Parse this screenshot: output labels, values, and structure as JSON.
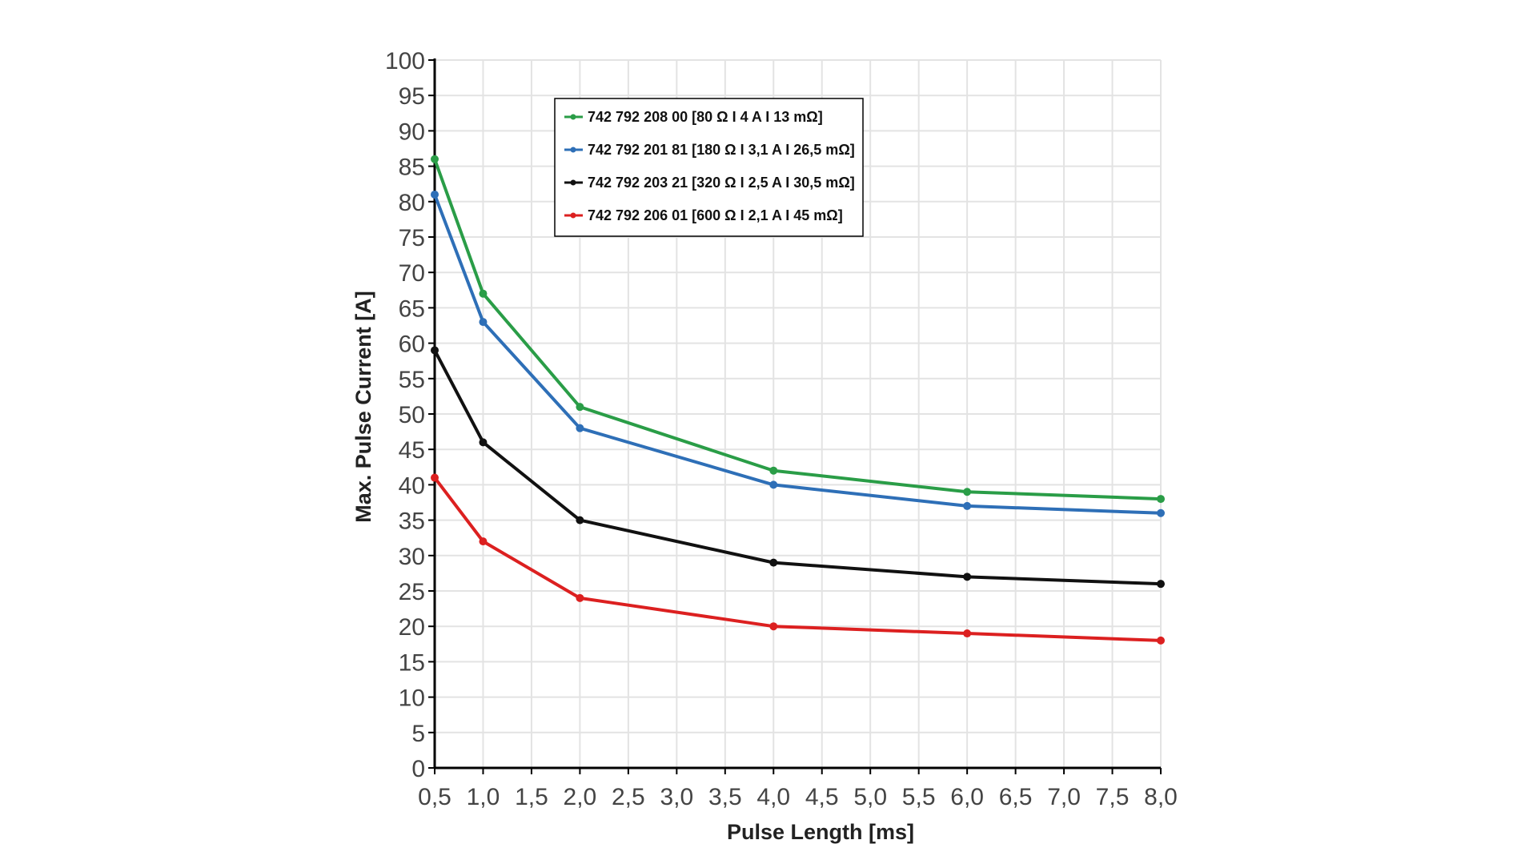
{
  "chart_data": {
    "type": "line",
    "xlabel": "Pulse  Length [ms]",
    "ylabel": "Max. Pulse Current [A]",
    "xlim": [
      0.5,
      8.0
    ],
    "ylim": [
      0,
      100
    ],
    "x_ticks": [
      "0,5",
      "1,0",
      "1,5",
      "2,0",
      "2,5",
      "3,0",
      "3,5",
      "4,0",
      "4,5",
      "5,0",
      "5,5",
      "6,0",
      "6,5",
      "7,0",
      "7,5",
      "8,0"
    ],
    "y_ticks": [
      "0",
      "5",
      "10",
      "15",
      "20",
      "25",
      "30",
      "35",
      "40",
      "45",
      "50",
      "55",
      "60",
      "65",
      "70",
      "75",
      "80",
      "85",
      "90",
      "95",
      "100"
    ],
    "grid": true,
    "legend_position": "top-left",
    "series": [
      {
        "name": "742 792 208 00 [80 Ω I 4 A I 13 mΩ]",
        "color": "#2a9d47",
        "x": [
          0.5,
          1.0,
          2.0,
          4.0,
          6.0,
          8.0
        ],
        "y": [
          86,
          67,
          51,
          42,
          39,
          38
        ]
      },
      {
        "name": "742 792 201 81 [180 Ω I 3,1 A I 26,5 mΩ]",
        "color": "#2e6fb7",
        "x": [
          0.5,
          1.0,
          2.0,
          4.0,
          6.0,
          8.0
        ],
        "y": [
          81,
          63,
          48,
          40,
          37,
          36
        ]
      },
      {
        "name": "742 792 203 21 [320 Ω I 2,5 A I 30,5 mΩ]",
        "color": "#111111",
        "x": [
          0.5,
          1.0,
          2.0,
          4.0,
          6.0,
          8.0
        ],
        "y": [
          59,
          46,
          35,
          29,
          27,
          26
        ]
      },
      {
        "name": "742 792 206 01 [600 Ω I 2,1 A I 45 mΩ]",
        "color": "#dc2020",
        "x": [
          0.5,
          1.0,
          2.0,
          4.0,
          6.0,
          8.0
        ],
        "y": [
          41,
          32,
          24,
          20,
          19,
          18
        ]
      }
    ]
  }
}
